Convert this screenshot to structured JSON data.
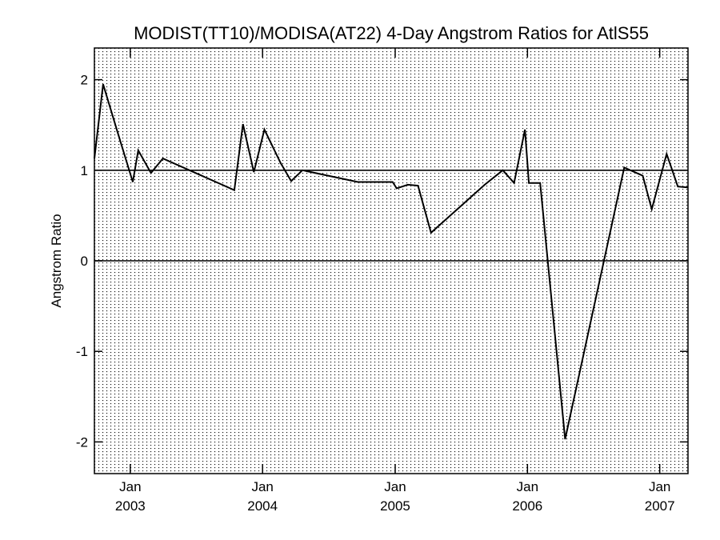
{
  "chart_data": {
    "type": "line",
    "title": "MODIST(TT10)/MODISA(AT22) 4-Day Angstrom Ratios for AtlS55",
    "xlabel": "",
    "ylabel": "Angstrom Ratio",
    "xlim": [
      "2002-09-24",
      "2007-03-20"
    ],
    "ylim": [
      -2.35,
      2.35
    ],
    "grid": true,
    "reference_lines": [
      0,
      1
    ],
    "y_ticks": [
      {
        "value": -2,
        "label": "-2"
      },
      {
        "value": -1,
        "label": "-1"
      },
      {
        "value": 0,
        "label": "0"
      },
      {
        "value": 1,
        "label": "1"
      },
      {
        "value": 2,
        "label": "2"
      }
    ],
    "x_ticks": [
      {
        "date": "2003-01-01",
        "month": "Jan",
        "year": "2003"
      },
      {
        "date": "2004-01-01",
        "month": "Jan",
        "year": "2004"
      },
      {
        "date": "2005-01-01",
        "month": "Jan",
        "year": "2005"
      },
      {
        "date": "2006-01-01",
        "month": "Jan",
        "year": "2006"
      },
      {
        "date": "2007-01-01",
        "month": "Jan",
        "year": "2007"
      }
    ],
    "series": [
      {
        "color": "#000000",
        "points": [
          {
            "x": "2002-09-24",
            "y": 1.13
          },
          {
            "x": "2002-10-18",
            "y": 1.95
          },
          {
            "x": "2002-11-27",
            "y": 1.42
          },
          {
            "x": "2003-01-08",
            "y": 0.87
          },
          {
            "x": "2003-01-23",
            "y": 1.22
          },
          {
            "x": "2003-02-27",
            "y": 0.97
          },
          {
            "x": "2003-04-01",
            "y": 1.13
          },
          {
            "x": "2003-10-15",
            "y": 0.78
          },
          {
            "x": "2003-11-08",
            "y": 1.51
          },
          {
            "x": "2003-12-08",
            "y": 0.98
          },
          {
            "x": "2004-01-06",
            "y": 1.45
          },
          {
            "x": "2004-02-20",
            "y": 1.08
          },
          {
            "x": "2004-03-20",
            "y": 0.88
          },
          {
            "x": "2004-04-20",
            "y": 1.0
          },
          {
            "x": "2004-09-20",
            "y": 0.87
          },
          {
            "x": "2004-12-25",
            "y": 0.87
          },
          {
            "x": "2005-01-05",
            "y": 0.8
          },
          {
            "x": "2005-02-05",
            "y": 0.84
          },
          {
            "x": "2005-03-05",
            "y": 0.83
          },
          {
            "x": "2005-04-10",
            "y": 0.31
          },
          {
            "x": "2005-09-05",
            "y": 0.84
          },
          {
            "x": "2005-10-25",
            "y": 1.0
          },
          {
            "x": "2005-11-25",
            "y": 0.86
          },
          {
            "x": "2005-12-25",
            "y": 1.45
          },
          {
            "x": "2006-01-05",
            "y": 0.86
          },
          {
            "x": "2006-02-05",
            "y": 0.86
          },
          {
            "x": "2006-04-15",
            "y": -1.97
          },
          {
            "x": "2006-09-25",
            "y": 1.03
          },
          {
            "x": "2006-11-15",
            "y": 0.94
          },
          {
            "x": "2006-12-10",
            "y": 0.57
          },
          {
            "x": "2007-01-20",
            "y": 1.18
          },
          {
            "x": "2007-02-20",
            "y": 0.82
          },
          {
            "x": "2007-03-20",
            "y": 0.81
          }
        ]
      }
    ]
  }
}
